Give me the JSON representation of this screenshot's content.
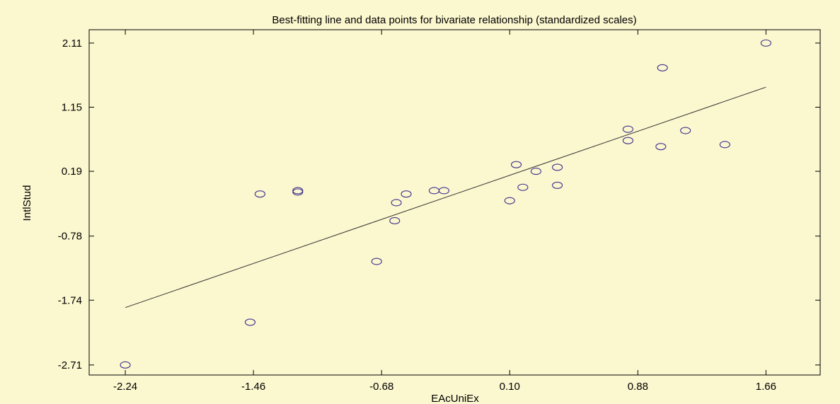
{
  "chart_data": {
    "type": "scatter",
    "title": "Best-fitting line and data points for bivariate relationship (standardized scales)",
    "xlabel": "EAcUniEx",
    "ylabel": "IntlStud",
    "xlim": [
      -2.46,
      1.99
    ],
    "ylim": [
      -2.86,
      2.31
    ],
    "x_ticks": [
      "-2.24",
      "-1.46",
      "-0.68",
      "0.10",
      "0.88",
      "1.66"
    ],
    "y_ticks": [
      "2.11",
      "1.15",
      "0.19",
      "-0.78",
      "-1.74",
      "-2.71"
    ],
    "grid": false,
    "legend": "none",
    "series": [
      {
        "marker": "circle",
        "color": "#3a2d8c",
        "points": [
          {
            "x": -2.24,
            "y": -2.71
          },
          {
            "x": -1.48,
            "y": -2.07
          },
          {
            "x": -1.42,
            "y": -0.15
          },
          {
            "x": -1.19,
            "y": -0.12
          },
          {
            "x": -1.19,
            "y": -0.1
          },
          {
            "x": -0.71,
            "y": -1.16
          },
          {
            "x": -0.6,
            "y": -0.55
          },
          {
            "x": -0.59,
            "y": -0.28
          },
          {
            "x": -0.53,
            "y": -0.15
          },
          {
            "x": -0.36,
            "y": -0.1
          },
          {
            "x": -0.3,
            "y": -0.1
          },
          {
            "x": 0.1,
            "y": -0.25
          },
          {
            "x": 0.14,
            "y": 0.29
          },
          {
            "x": 0.18,
            "y": -0.05
          },
          {
            "x": 0.26,
            "y": 0.19
          },
          {
            "x": 0.39,
            "y": -0.02
          },
          {
            "x": 0.39,
            "y": 0.25
          },
          {
            "x": 0.82,
            "y": 0.82
          },
          {
            "x": 0.82,
            "y": 0.65
          },
          {
            "x": 1.02,
            "y": 0.56
          },
          {
            "x": 1.03,
            "y": 1.74
          },
          {
            "x": 1.17,
            "y": 0.8
          },
          {
            "x": 1.41,
            "y": 0.59
          },
          {
            "x": 1.66,
            "y": 2.11
          }
        ]
      }
    ],
    "fit_line": {
      "x": [
        -2.24,
        1.66
      ],
      "y": [
        -1.85,
        1.45
      ],
      "color": "#333333"
    }
  }
}
